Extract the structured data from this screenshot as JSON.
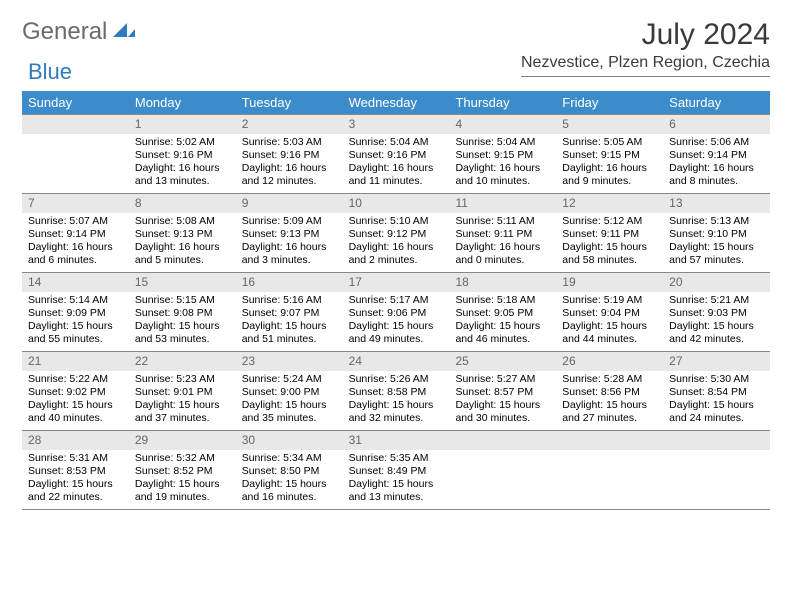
{
  "brand": {
    "part1": "General",
    "part2": "Blue",
    "icon_color": "#2f7bbf",
    "text1_color": "#6b6b6b"
  },
  "header": {
    "title": "July 2024",
    "location": "Nezvestice, Plzen Region, Czechia"
  },
  "calendar": {
    "weekdays": [
      "Sunday",
      "Monday",
      "Tuesday",
      "Wednesday",
      "Thursday",
      "Friday",
      "Saturday"
    ],
    "header_bg": "#3c8ccc",
    "header_fg": "#ffffff",
    "daynum_bg": "#e8e8e8",
    "daynum_fg": "#666666",
    "border_color": "#888888",
    "text_fontsize": 10.5,
    "weeks": [
      [
        {
          "day": "",
          "lines": []
        },
        {
          "day": "1",
          "lines": [
            "Sunrise: 5:02 AM",
            "Sunset: 9:16 PM",
            "Daylight: 16 hours and 13 minutes."
          ]
        },
        {
          "day": "2",
          "lines": [
            "Sunrise: 5:03 AM",
            "Sunset: 9:16 PM",
            "Daylight: 16 hours and 12 minutes."
          ]
        },
        {
          "day": "3",
          "lines": [
            "Sunrise: 5:04 AM",
            "Sunset: 9:16 PM",
            "Daylight: 16 hours and 11 minutes."
          ]
        },
        {
          "day": "4",
          "lines": [
            "Sunrise: 5:04 AM",
            "Sunset: 9:15 PM",
            "Daylight: 16 hours and 10 minutes."
          ]
        },
        {
          "day": "5",
          "lines": [
            "Sunrise: 5:05 AM",
            "Sunset: 9:15 PM",
            "Daylight: 16 hours and 9 minutes."
          ]
        },
        {
          "day": "6",
          "lines": [
            "Sunrise: 5:06 AM",
            "Sunset: 9:14 PM",
            "Daylight: 16 hours and 8 minutes."
          ]
        }
      ],
      [
        {
          "day": "7",
          "lines": [
            "Sunrise: 5:07 AM",
            "Sunset: 9:14 PM",
            "Daylight: 16 hours and 6 minutes."
          ]
        },
        {
          "day": "8",
          "lines": [
            "Sunrise: 5:08 AM",
            "Sunset: 9:13 PM",
            "Daylight: 16 hours and 5 minutes."
          ]
        },
        {
          "day": "9",
          "lines": [
            "Sunrise: 5:09 AM",
            "Sunset: 9:13 PM",
            "Daylight: 16 hours and 3 minutes."
          ]
        },
        {
          "day": "10",
          "lines": [
            "Sunrise: 5:10 AM",
            "Sunset: 9:12 PM",
            "Daylight: 16 hours and 2 minutes."
          ]
        },
        {
          "day": "11",
          "lines": [
            "Sunrise: 5:11 AM",
            "Sunset: 9:11 PM",
            "Daylight: 16 hours and 0 minutes."
          ]
        },
        {
          "day": "12",
          "lines": [
            "Sunrise: 5:12 AM",
            "Sunset: 9:11 PM",
            "Daylight: 15 hours and 58 minutes."
          ]
        },
        {
          "day": "13",
          "lines": [
            "Sunrise: 5:13 AM",
            "Sunset: 9:10 PM",
            "Daylight: 15 hours and 57 minutes."
          ]
        }
      ],
      [
        {
          "day": "14",
          "lines": [
            "Sunrise: 5:14 AM",
            "Sunset: 9:09 PM",
            "Daylight: 15 hours and 55 minutes."
          ]
        },
        {
          "day": "15",
          "lines": [
            "Sunrise: 5:15 AM",
            "Sunset: 9:08 PM",
            "Daylight: 15 hours and 53 minutes."
          ]
        },
        {
          "day": "16",
          "lines": [
            "Sunrise: 5:16 AM",
            "Sunset: 9:07 PM",
            "Daylight: 15 hours and 51 minutes."
          ]
        },
        {
          "day": "17",
          "lines": [
            "Sunrise: 5:17 AM",
            "Sunset: 9:06 PM",
            "Daylight: 15 hours and 49 minutes."
          ]
        },
        {
          "day": "18",
          "lines": [
            "Sunrise: 5:18 AM",
            "Sunset: 9:05 PM",
            "Daylight: 15 hours and 46 minutes."
          ]
        },
        {
          "day": "19",
          "lines": [
            "Sunrise: 5:19 AM",
            "Sunset: 9:04 PM",
            "Daylight: 15 hours and 44 minutes."
          ]
        },
        {
          "day": "20",
          "lines": [
            "Sunrise: 5:21 AM",
            "Sunset: 9:03 PM",
            "Daylight: 15 hours and 42 minutes."
          ]
        }
      ],
      [
        {
          "day": "21",
          "lines": [
            "Sunrise: 5:22 AM",
            "Sunset: 9:02 PM",
            "Daylight: 15 hours and 40 minutes."
          ]
        },
        {
          "day": "22",
          "lines": [
            "Sunrise: 5:23 AM",
            "Sunset: 9:01 PM",
            "Daylight: 15 hours and 37 minutes."
          ]
        },
        {
          "day": "23",
          "lines": [
            "Sunrise: 5:24 AM",
            "Sunset: 9:00 PM",
            "Daylight: 15 hours and 35 minutes."
          ]
        },
        {
          "day": "24",
          "lines": [
            "Sunrise: 5:26 AM",
            "Sunset: 8:58 PM",
            "Daylight: 15 hours and 32 minutes."
          ]
        },
        {
          "day": "25",
          "lines": [
            "Sunrise: 5:27 AM",
            "Sunset: 8:57 PM",
            "Daylight: 15 hours and 30 minutes."
          ]
        },
        {
          "day": "26",
          "lines": [
            "Sunrise: 5:28 AM",
            "Sunset: 8:56 PM",
            "Daylight: 15 hours and 27 minutes."
          ]
        },
        {
          "day": "27",
          "lines": [
            "Sunrise: 5:30 AM",
            "Sunset: 8:54 PM",
            "Daylight: 15 hours and 24 minutes."
          ]
        }
      ],
      [
        {
          "day": "28",
          "lines": [
            "Sunrise: 5:31 AM",
            "Sunset: 8:53 PM",
            "Daylight: 15 hours and 22 minutes."
          ]
        },
        {
          "day": "29",
          "lines": [
            "Sunrise: 5:32 AM",
            "Sunset: 8:52 PM",
            "Daylight: 15 hours and 19 minutes."
          ]
        },
        {
          "day": "30",
          "lines": [
            "Sunrise: 5:34 AM",
            "Sunset: 8:50 PM",
            "Daylight: 15 hours and 16 minutes."
          ]
        },
        {
          "day": "31",
          "lines": [
            "Sunrise: 5:35 AM",
            "Sunset: 8:49 PM",
            "Daylight: 15 hours and 13 minutes."
          ]
        },
        {
          "day": "",
          "lines": []
        },
        {
          "day": "",
          "lines": []
        },
        {
          "day": "",
          "lines": []
        }
      ]
    ]
  }
}
